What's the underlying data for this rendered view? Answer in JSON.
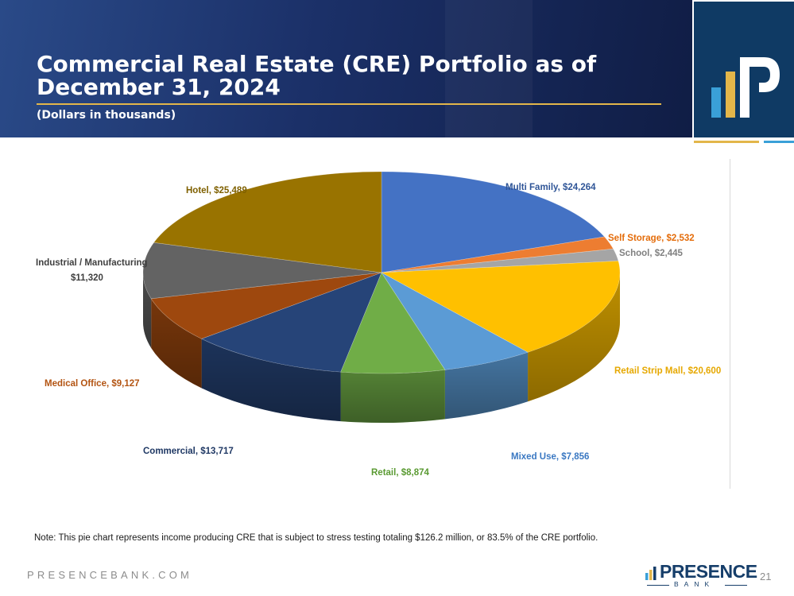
{
  "header": {
    "title": "Commercial Real Estate (CRE) Portfolio  as of December 31, 2024",
    "subtitle": "(Dollars in thousands)"
  },
  "note": "Note: This pie chart represents income producing CRE that is subject to stress testing totaling $126.2 million, or 83.5% of the CRE portfolio.",
  "footer": {
    "url": "PRESENCEBANK.COM",
    "bank_name": "PRESENCE",
    "bank_sub": "BANK",
    "page_number": "21"
  },
  "colors": {
    "header_bg": "#1b3068",
    "accent_gold": "#e3b64a",
    "logo_bg": "#0f3a64"
  },
  "chart_data": {
    "type": "pie",
    "title": "",
    "slices": [
      {
        "label": "Multi Family, $24,264",
        "value": 24264,
        "color": "#4472c4",
        "label_color": "#2f5597"
      },
      {
        "label": "Self Storage, $2,532",
        "value": 2532,
        "color": "#ed7d31",
        "label_color": "#e46c0a"
      },
      {
        "label": "School, $2,445",
        "value": 2445,
        "color": "#a5a5a5",
        "label_color": "#808080"
      },
      {
        "label": "Retail Strip Mall, $20,600",
        "value": 20600,
        "color": "#ffc000",
        "label_color": "#e6a800"
      },
      {
        "label": "Mixed Use, $7,856",
        "value": 7856,
        "color": "#5b9bd5",
        "label_color": "#3a78c2"
      },
      {
        "label": "Retail, $8,874",
        "value": 8874,
        "color": "#70ad47",
        "label_color": "#5a9a32"
      },
      {
        "label": "Commercial, $13,717",
        "value": 13717,
        "color": "#264478",
        "label_color": "#1f3864"
      },
      {
        "label": "Medical Office, $9,127",
        "value": 9127,
        "color": "#9e480e",
        "label_color": "#b35412"
      },
      {
        "label": "Industrial / Manufacturing, $11,320",
        "value": 11320,
        "color": "#636363",
        "label_color": "#3f3f3f"
      },
      {
        "label": "Hotel, $25,489",
        "value": 25489,
        "color": "#997300",
        "label_color": "#7f6000"
      }
    ]
  }
}
